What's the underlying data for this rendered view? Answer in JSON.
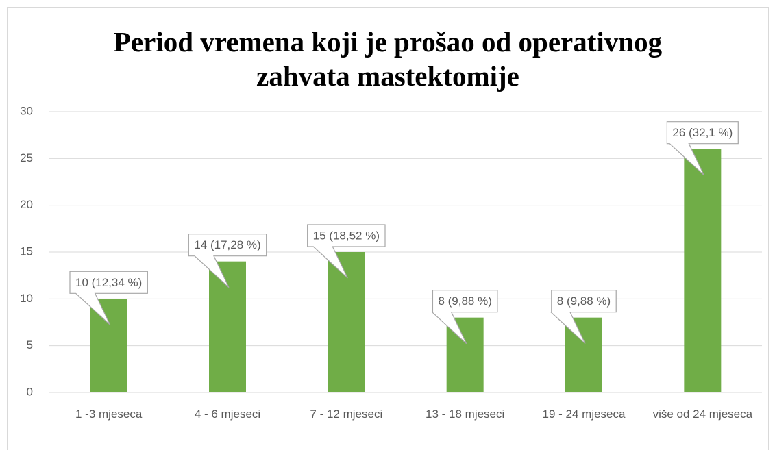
{
  "chart_data": {
    "type": "bar",
    "title": "Period vremena koji je prošao od operativnog zahvata mastektomije",
    "categories": [
      "1 -3 mjeseca",
      "4 - 6 mjeseci",
      "7 - 12 mjeseci",
      "13 - 18 mjeseci",
      "19 - 24 mjeseca",
      "više od 24 mjeseca"
    ],
    "values": [
      10,
      14,
      15,
      8,
      8,
      26
    ],
    "value_labels": [
      "10 (12,34 %)",
      "14 (17,28 %)",
      "15 (18,52 %)",
      "8 (9,88 %)",
      "8 (9,88 %)",
      "26 (32,1 %)"
    ],
    "color": "#70ad47",
    "ylim": [
      0,
      30
    ],
    "yticks": [
      0,
      5,
      10,
      15,
      20,
      25,
      30
    ],
    "grid": true
  }
}
